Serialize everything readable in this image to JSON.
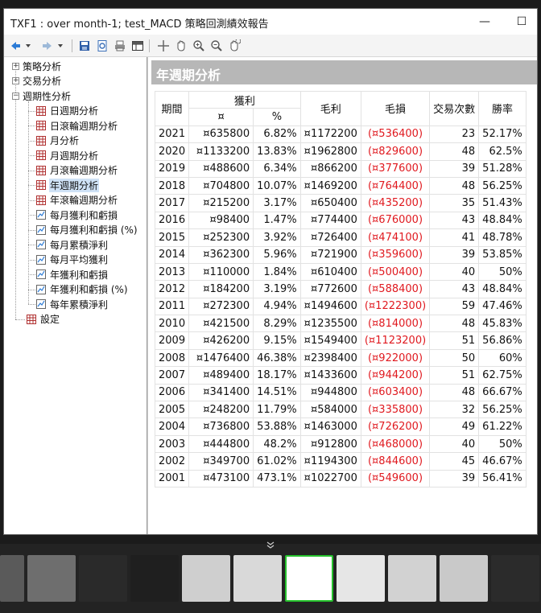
{
  "window": {
    "title": "TXF1 : over month-1; test_MACD 策略回測績效報告",
    "minimize_glyph": "—",
    "maximize_glyph": "☐"
  },
  "toolbar": {
    "icons": [
      "back-arrow-icon",
      "dropdown-icon",
      "forward-arrow-icon",
      "dropdown-icon",
      "save-icon",
      "print-preview-icon",
      "print-icon",
      "table-view-icon",
      "crosshair-icon",
      "hand-pan-icon",
      "zoom-in-icon",
      "zoom-out-icon",
      "reset-zoom-icon"
    ]
  },
  "tree": {
    "nodes": [
      {
        "label": "策略分析",
        "level": 0,
        "expander": "+",
        "icon": "none"
      },
      {
        "label": "交易分析",
        "level": 0,
        "expander": "+",
        "icon": "none"
      },
      {
        "label": "週期性分析",
        "level": 0,
        "expander": "−",
        "icon": "none"
      },
      {
        "label": "日週期分析",
        "level": 1,
        "icon": "table"
      },
      {
        "label": "日滾輪週期分析",
        "level": 1,
        "icon": "table"
      },
      {
        "label": "月分析",
        "level": 1,
        "icon": "table"
      },
      {
        "label": "月週期分析",
        "level": 1,
        "icon": "table"
      },
      {
        "label": "月滾輪週期分析",
        "level": 1,
        "icon": "table"
      },
      {
        "label": "年週期分析",
        "level": 1,
        "icon": "table",
        "selected": true
      },
      {
        "label": "年滾輪週期分析",
        "level": 1,
        "icon": "table"
      },
      {
        "label": "每月獲利和虧損",
        "level": 1,
        "icon": "chart"
      },
      {
        "label": "每月獲利和虧損 (%)",
        "level": 1,
        "icon": "chart"
      },
      {
        "label": "每月累積淨利",
        "level": 1,
        "icon": "chart"
      },
      {
        "label": "每月平均獲利",
        "level": 1,
        "icon": "chart"
      },
      {
        "label": "年獲利和虧損",
        "level": 1,
        "icon": "chart"
      },
      {
        "label": "年獲利和虧損 (%)",
        "level": 1,
        "icon": "chart"
      },
      {
        "label": "每年累積淨利",
        "level": 1,
        "icon": "chart"
      },
      {
        "label": "設定",
        "level": 0,
        "icon": "table"
      }
    ]
  },
  "content": {
    "header": "年週期分析",
    "columns": {
      "period": "期間",
      "profit": "獲利",
      "profit_currency": "¤",
      "profit_pct": "%",
      "gross_profit": "毛利",
      "gross_loss": "毛損",
      "trades": "交易次數",
      "win_rate": "勝率"
    },
    "rows": [
      [
        "2021",
        "¤635800",
        "6.82%",
        "¤1172200",
        "(¤536400)",
        "23",
        "52.17%"
      ],
      [
        "2020",
        "¤1133200",
        "13.83%",
        "¤1962800",
        "(¤829600)",
        "48",
        "62.5%"
      ],
      [
        "2019",
        "¤488600",
        "6.34%",
        "¤866200",
        "(¤377600)",
        "39",
        "51.28%"
      ],
      [
        "2018",
        "¤704800",
        "10.07%",
        "¤1469200",
        "(¤764400)",
        "48",
        "56.25%"
      ],
      [
        "2017",
        "¤215200",
        "3.17%",
        "¤650400",
        "(¤435200)",
        "35",
        "51.43%"
      ],
      [
        "2016",
        "¤98400",
        "1.47%",
        "¤774400",
        "(¤676000)",
        "43",
        "48.84%"
      ],
      [
        "2015",
        "¤252300",
        "3.92%",
        "¤726400",
        "(¤474100)",
        "41",
        "48.78%"
      ],
      [
        "2014",
        "¤362300",
        "5.96%",
        "¤721900",
        "(¤359600)",
        "39",
        "53.85%"
      ],
      [
        "2013",
        "¤110000",
        "1.84%",
        "¤610400",
        "(¤500400)",
        "40",
        "50%"
      ],
      [
        "2012",
        "¤184200",
        "3.19%",
        "¤772600",
        "(¤588400)",
        "43",
        "48.84%"
      ],
      [
        "2011",
        "¤272300",
        "4.94%",
        "¤1494600",
        "(¤1222300)",
        "59",
        "47.46%"
      ],
      [
        "2010",
        "¤421500",
        "8.29%",
        "¤1235500",
        "(¤814000)",
        "48",
        "45.83%"
      ],
      [
        "2009",
        "¤426200",
        "9.15%",
        "¤1549400",
        "(¤1123200)",
        "51",
        "56.86%"
      ],
      [
        "2008",
        "¤1476400",
        "46.38%",
        "¤2398400",
        "(¤922000)",
        "50",
        "60%"
      ],
      [
        "2007",
        "¤489400",
        "18.17%",
        "¤1433600",
        "(¤944200)",
        "51",
        "62.75%"
      ],
      [
        "2006",
        "¤341400",
        "14.51%",
        "¤944800",
        "(¤603400)",
        "48",
        "66.67%"
      ],
      [
        "2005",
        "¤248200",
        "11.79%",
        "¤584000",
        "(¤335800)",
        "32",
        "56.25%"
      ],
      [
        "2004",
        "¤736800",
        "53.88%",
        "¤1463000",
        "(¤726200)",
        "49",
        "61.22%"
      ],
      [
        "2003",
        "¤444800",
        "48.2%",
        "¤912800",
        "(¤468000)",
        "40",
        "50%"
      ],
      [
        "2002",
        "¤349700",
        "61.02%",
        "¤1194300",
        "(¤844600)",
        "45",
        "46.67%"
      ],
      [
        "2001",
        "¤473100",
        "473.1%",
        "¤1022700",
        "(¤549600)",
        "39",
        "56.41%"
      ]
    ]
  },
  "taskbar": {
    "thumbnail_count": 11,
    "active_index": 6
  },
  "colors": {
    "loss_red": "#e0191f",
    "header_gray": "#b7b7b7",
    "active_thumb_border": "#25c12c"
  }
}
